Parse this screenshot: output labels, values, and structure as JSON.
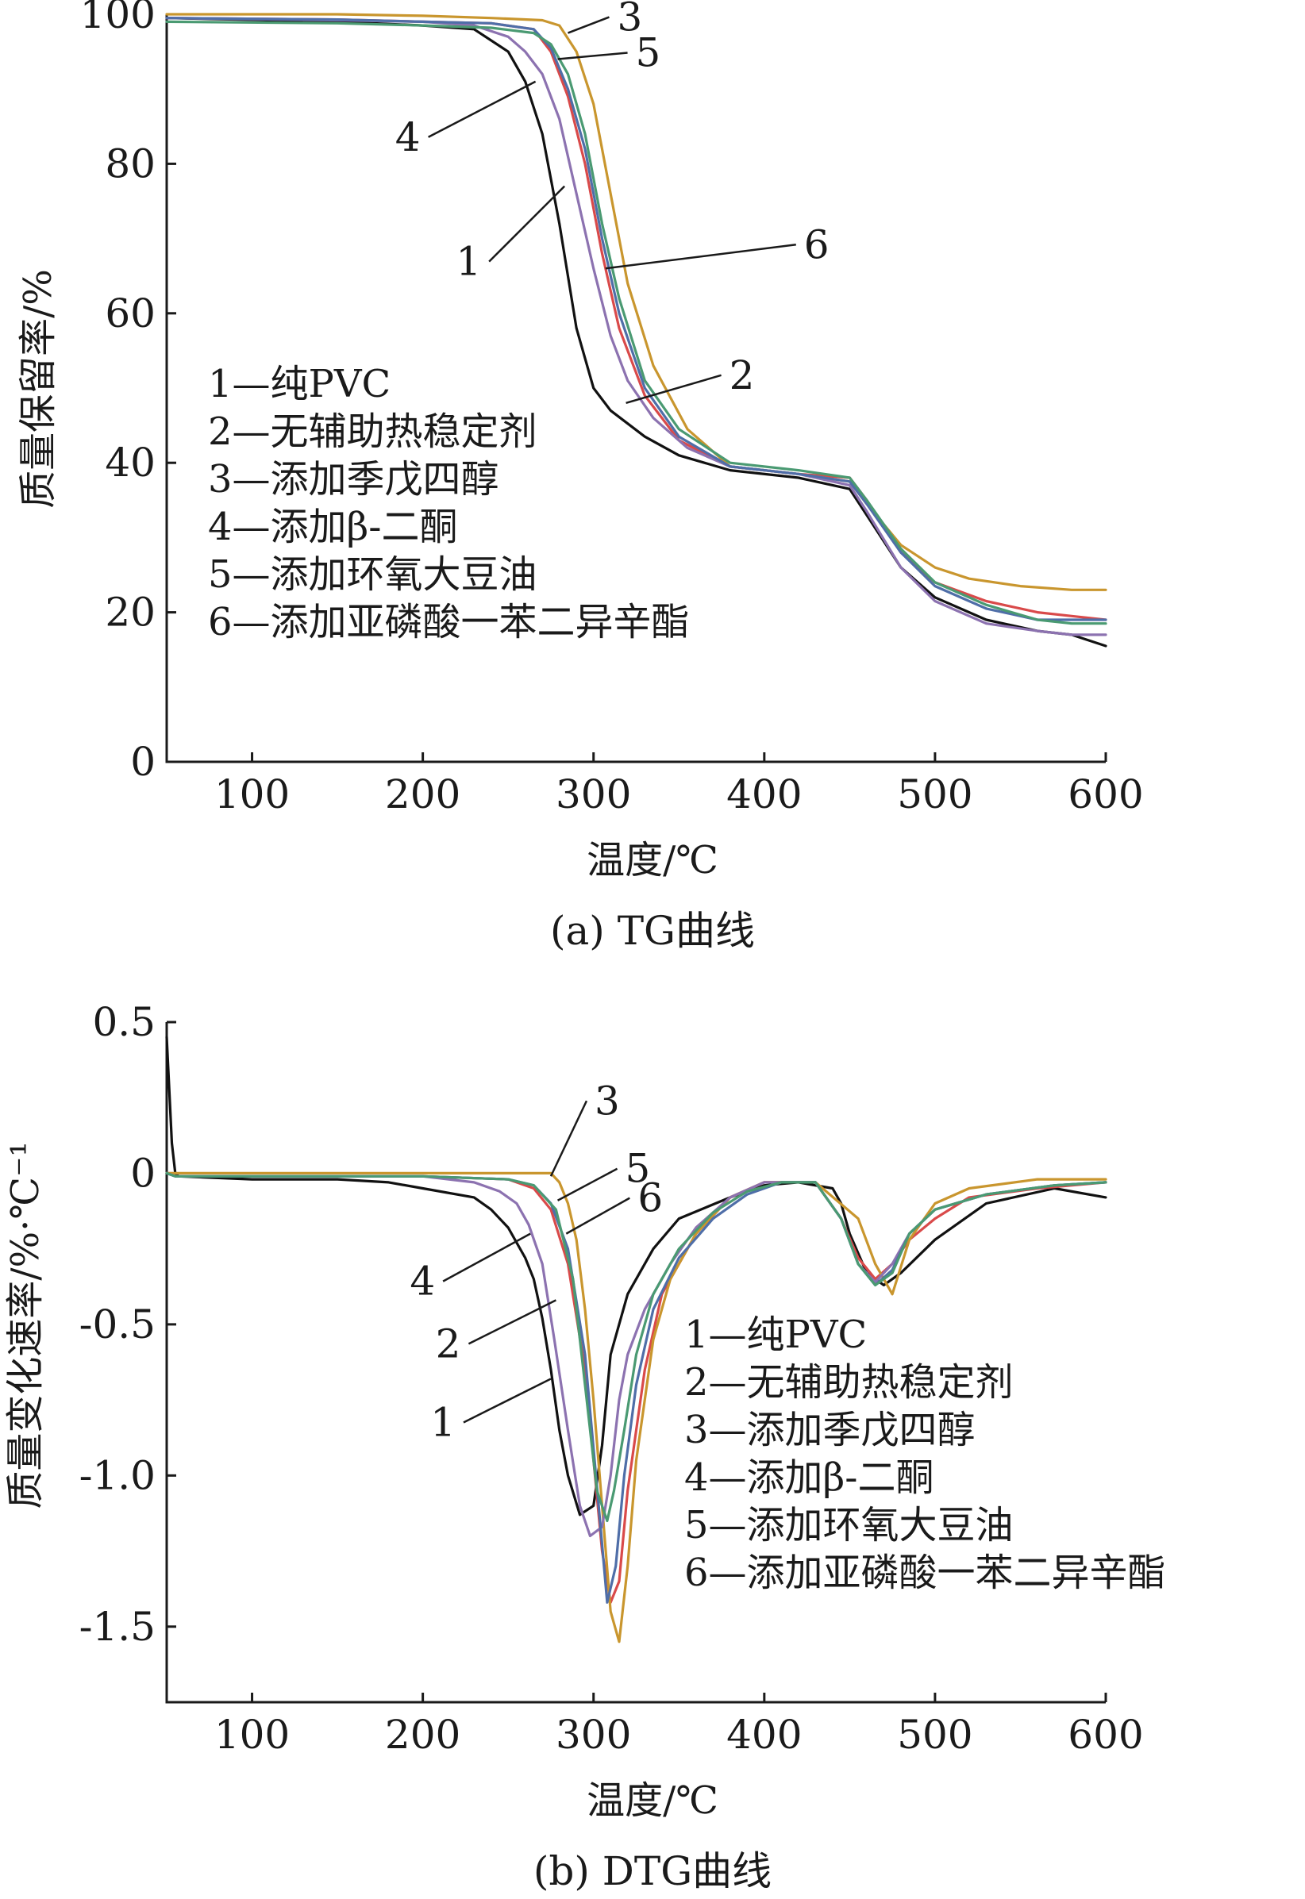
{
  "chart_data": [
    {
      "type": "line",
      "caption": "(a) TG曲线",
      "xlabel": "温度/℃",
      "ylabel": "质量保留率/%",
      "xlim": [
        50,
        600
      ],
      "ylim": [
        0,
        100
      ],
      "xticks": [
        "100",
        "200",
        "300",
        "400",
        "500",
        "600"
      ],
      "yticks": [
        "0",
        "20",
        "40",
        "60",
        "80",
        "100"
      ],
      "grid": false,
      "legend_position": "middle-left",
      "legend": [
        "1—纯PVC",
        "2—无辅助热稳定剂",
        "3—添加季戊四醇",
        "4—添加β-二酮",
        "5—添加环氧大豆油",
        "6—添加亚磷酸一苯二异辛酯"
      ],
      "series": [
        {
          "name": "1",
          "color": "#111111",
          "x": [
            50,
            150,
            200,
            230,
            250,
            260,
            270,
            280,
            290,
            300,
            310,
            330,
            350,
            380,
            420,
            450,
            460,
            480,
            500,
            530,
            560,
            580,
            600
          ],
          "y": [
            99.5,
            99,
            98.5,
            98,
            95,
            91,
            84,
            72,
            58,
            50,
            47,
            43.5,
            41,
            39,
            38,
            36.5,
            33,
            26,
            22,
            19,
            17.5,
            17,
            15.5
          ]
        },
        {
          "name": "2",
          "color": "#d94a4a",
          "x": [
            50,
            150,
            200,
            240,
            265,
            275,
            285,
            295,
            305,
            315,
            330,
            350,
            380,
            420,
            450,
            460,
            480,
            500,
            530,
            560,
            580,
            600
          ],
          "y": [
            99.5,
            99.3,
            99,
            98.8,
            98,
            95,
            89,
            80,
            68,
            58,
            49,
            43,
            39.5,
            38.5,
            38,
            35,
            28,
            24,
            21.5,
            20,
            19.5,
            19
          ]
        },
        {
          "name": "3",
          "color": "#c9962e",
          "x": [
            50,
            150,
            200,
            240,
            270,
            280,
            290,
            300,
            310,
            320,
            335,
            355,
            380,
            420,
            450,
            460,
            480,
            500,
            520,
            550,
            580,
            600
          ],
          "y": [
            100,
            100,
            99.8,
            99.5,
            99.2,
            98.5,
            95,
            88,
            76,
            64,
            53,
            44.5,
            39.5,
            38.5,
            37.5,
            34.5,
            29,
            26,
            24.5,
            23.5,
            23,
            23
          ]
        },
        {
          "name": "4",
          "color": "#8c72b0",
          "x": [
            50,
            150,
            200,
            230,
            250,
            260,
            270,
            280,
            290,
            300,
            310,
            320,
            335,
            355,
            380,
            420,
            450,
            460,
            480,
            500,
            530,
            560,
            580,
            600
          ],
          "y": [
            99.5,
            99.2,
            99,
            98.5,
            97,
            95,
            92,
            86,
            76,
            66,
            57,
            51,
            46,
            42,
            39.5,
            38.5,
            37,
            33.5,
            26,
            21.5,
            18.5,
            17.5,
            17,
            17
          ]
        },
        {
          "name": "5",
          "color": "#4f6ea8",
          "x": [
            50,
            150,
            200,
            240,
            265,
            275,
            285,
            295,
            305,
            315,
            330,
            350,
            380,
            420,
            450,
            460,
            480,
            500,
            530,
            560,
            580,
            600
          ],
          "y": [
            99.5,
            99.3,
            99,
            98.8,
            98,
            95.5,
            90,
            82,
            70,
            60,
            50,
            43.5,
            39.5,
            38.5,
            37.5,
            34.5,
            28,
            23.5,
            20.5,
            19,
            19,
            19
          ]
        },
        {
          "name": "6",
          "color": "#4a9a72",
          "x": [
            50,
            150,
            200,
            240,
            265,
            275,
            285,
            295,
            305,
            315,
            330,
            350,
            380,
            420,
            450,
            460,
            480,
            500,
            530,
            560,
            580,
            600
          ],
          "y": [
            99,
            98.8,
            98.5,
            98.2,
            97.5,
            96,
            92,
            84,
            72,
            62,
            51,
            44.5,
            40,
            39,
            38,
            35,
            28.5,
            24,
            21,
            19,
            18.5,
            18.5
          ]
        }
      ],
      "callouts": [
        {
          "label": "3",
          "x": 285,
          "y": 97.5
        },
        {
          "label": "5",
          "x": 279,
          "y": 94
        },
        {
          "label": "4",
          "x": 266,
          "y": 91
        },
        {
          "label": "1",
          "x": 283,
          "y": 77
        },
        {
          "label": "6",
          "x": 307,
          "y": 66
        },
        {
          "label": "2",
          "x": 319,
          "y": 48
        }
      ]
    },
    {
      "type": "line",
      "caption": "(b) DTG曲线",
      "xlabel": "温度/℃",
      "ylabel": "质量变化速率/%·℃⁻¹",
      "xlim": [
        50,
        600
      ],
      "ylim": [
        -1.75,
        0.5
      ],
      "xticks": [
        "100",
        "200",
        "300",
        "400",
        "500",
        "600"
      ],
      "yticks": [
        "0.5",
        "0",
        "-0.5",
        "-1.0",
        "-1.5"
      ],
      "grid": false,
      "legend_position": "right",
      "legend": [
        "1—纯PVC",
        "2—无辅助热稳定剂",
        "3—添加季戊四醇",
        "4—添加β-二酮",
        "5—添加环氧大豆油",
        "6—添加亚磷酸一苯二异辛酯"
      ],
      "series": [
        {
          "name": "1",
          "color": "#111111",
          "x": [
            50,
            53,
            55,
            57,
            100,
            150,
            180,
            200,
            230,
            240,
            250,
            255,
            260,
            265,
            270,
            275,
            280,
            285,
            292,
            300,
            305,
            310,
            320,
            335,
            350,
            380,
            400,
            420,
            440,
            445,
            450,
            460,
            470,
            480,
            500,
            530,
            570,
            600
          ],
          "y": [
            0.45,
            0.1,
            0,
            -0.01,
            -0.02,
            -0.02,
            -0.03,
            -0.05,
            -0.08,
            -0.12,
            -0.18,
            -0.23,
            -0.28,
            -0.35,
            -0.48,
            -0.65,
            -0.85,
            -1.0,
            -1.13,
            -1.1,
            -0.9,
            -0.6,
            -0.4,
            -0.25,
            -0.15,
            -0.08,
            -0.04,
            -0.03,
            -0.05,
            -0.1,
            -0.2,
            -0.33,
            -0.37,
            -0.33,
            -0.22,
            -0.1,
            -0.05,
            -0.08
          ]
        },
        {
          "name": "2",
          "color": "#d94a4a",
          "x": [
            50,
            55,
            100,
            200,
            250,
            265,
            275,
            285,
            295,
            305,
            310,
            315,
            320,
            330,
            340,
            360,
            380,
            400,
            430,
            445,
            455,
            465,
            475,
            485,
            500,
            520,
            560,
            600
          ],
          "y": [
            0,
            -0.01,
            -0.01,
            -0.01,
            -0.02,
            -0.05,
            -0.12,
            -0.3,
            -0.65,
            -1.25,
            -1.42,
            -1.35,
            -1.05,
            -0.65,
            -0.4,
            -0.2,
            -0.08,
            -0.03,
            -0.03,
            -0.15,
            -0.28,
            -0.35,
            -0.3,
            -0.22,
            -0.15,
            -0.08,
            -0.05,
            -0.03
          ]
        },
        {
          "name": "3",
          "color": "#c9962e",
          "x": [
            50,
            55,
            100,
            200,
            260,
            275,
            280,
            285,
            290,
            295,
            300,
            305,
            310,
            315,
            320,
            325,
            335,
            345,
            360,
            380,
            400,
            430,
            455,
            465,
            475,
            485,
            500,
            520,
            560,
            600
          ],
          "y": [
            0,
            0,
            0,
            0,
            0,
            0,
            -0.03,
            -0.1,
            -0.22,
            -0.45,
            -0.75,
            -1.1,
            -1.45,
            -1.55,
            -1.3,
            -0.95,
            -0.55,
            -0.35,
            -0.2,
            -0.08,
            -0.03,
            -0.03,
            -0.15,
            -0.3,
            -0.4,
            -0.22,
            -0.1,
            -0.05,
            -0.02,
            -0.02
          ]
        },
        {
          "name": "4",
          "color": "#8c72b0",
          "x": [
            50,
            55,
            100,
            200,
            230,
            245,
            255,
            262,
            270,
            277,
            285,
            292,
            298,
            305,
            310,
            315,
            320,
            330,
            345,
            360,
            380,
            400,
            430,
            445,
            455,
            465,
            475,
            485,
            500,
            530,
            570,
            600
          ],
          "y": [
            0,
            -0.01,
            -0.01,
            -0.01,
            -0.03,
            -0.06,
            -0.1,
            -0.17,
            -0.3,
            -0.55,
            -0.85,
            -1.1,
            -1.2,
            -1.17,
            -1.0,
            -0.75,
            -0.6,
            -0.45,
            -0.3,
            -0.18,
            -0.08,
            -0.03,
            -0.03,
            -0.15,
            -0.3,
            -0.36,
            -0.3,
            -0.2,
            -0.12,
            -0.07,
            -0.04,
            -0.03
          ]
        },
        {
          "name": "5",
          "color": "#4f6ea8",
          "x": [
            50,
            55,
            100,
            200,
            250,
            265,
            275,
            285,
            295,
            303,
            308,
            313,
            318,
            325,
            335,
            350,
            370,
            390,
            410,
            430,
            445,
            455,
            465,
            475,
            485,
            500,
            530,
            570,
            600
          ],
          "y": [
            0,
            -0.01,
            -0.01,
            -0.01,
            -0.02,
            -0.04,
            -0.1,
            -0.25,
            -0.6,
            -1.1,
            -1.42,
            -1.3,
            -1.0,
            -0.7,
            -0.45,
            -0.28,
            -0.15,
            -0.07,
            -0.03,
            -0.03,
            -0.15,
            -0.3,
            -0.37,
            -0.32,
            -0.2,
            -0.12,
            -0.07,
            -0.04,
            -0.03
          ]
        },
        {
          "name": "6",
          "color": "#4a9a72",
          "x": [
            50,
            55,
            100,
            200,
            250,
            265,
            278,
            288,
            295,
            302,
            308,
            312,
            318,
            325,
            335,
            350,
            370,
            390,
            410,
            430,
            445,
            455,
            465,
            475,
            485,
            500,
            530,
            570,
            600
          ],
          "y": [
            0,
            -0.01,
            -0.01,
            -0.01,
            -0.02,
            -0.04,
            -0.12,
            -0.35,
            -0.7,
            -1.05,
            -1.15,
            -1.05,
            -0.85,
            -0.6,
            -0.4,
            -0.25,
            -0.13,
            -0.06,
            -0.03,
            -0.03,
            -0.15,
            -0.3,
            -0.37,
            -0.33,
            -0.2,
            -0.12,
            -0.07,
            -0.04,
            -0.03
          ]
        }
      ],
      "callouts": [
        {
          "label": "3",
          "x": 275,
          "y": -0.01
        },
        {
          "label": "5",
          "x": 279,
          "y": -0.09
        },
        {
          "label": "6",
          "x": 284,
          "y": -0.2
        },
        {
          "label": "4",
          "x": 263,
          "y": -0.2
        },
        {
          "label": "2",
          "x": 278,
          "y": -0.42
        },
        {
          "label": "1",
          "x": 275,
          "y": -0.68
        }
      ]
    }
  ]
}
